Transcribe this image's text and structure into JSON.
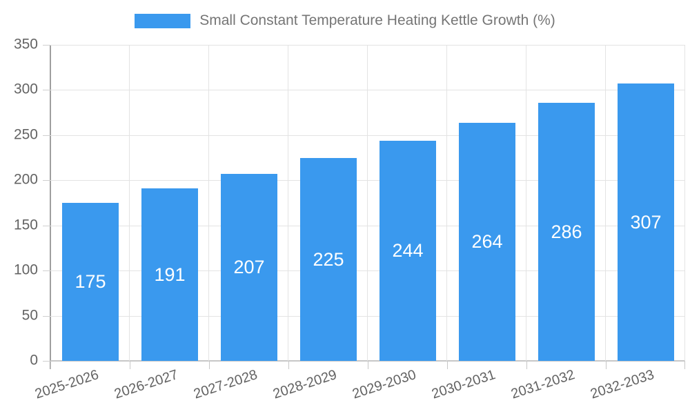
{
  "legend": {
    "label": "Small Constant Temperature Heating Kettle Growth (%)"
  },
  "chart_data": {
    "type": "bar",
    "title": "",
    "series_name": "Small Constant Temperature Heating Kettle Growth (%)",
    "categories": [
      "2025-2026",
      "2026-2027",
      "2027-2028",
      "2028-2029",
      "2029-2030",
      "2030-2031",
      "2031-2032",
      "2032-2033"
    ],
    "values": [
      175,
      191,
      207,
      225,
      244,
      264,
      286,
      307
    ],
    "value_labels": [
      "175",
      "191",
      "207",
      "225",
      "244",
      "264",
      "286",
      "307"
    ],
    "xlabel": "",
    "ylabel": "",
    "ylim": [
      0,
      350
    ],
    "yticks": [
      0,
      50,
      100,
      150,
      200,
      250,
      300,
      350
    ],
    "ytick_labels": [
      "0",
      "50",
      "100",
      "150",
      "200",
      "250",
      "300",
      "350"
    ],
    "grid": true,
    "legend_position": "top",
    "value_label_position": "center-of-bar",
    "bar_color": "#3a99ee",
    "value_label_color": "#ffffff",
    "grid_color": "#e3e3e3",
    "axis_color": "#9e9e9e",
    "tick_text_color": "#636363",
    "legend_text_color": "#757575",
    "background_color": "#ffffff"
  }
}
